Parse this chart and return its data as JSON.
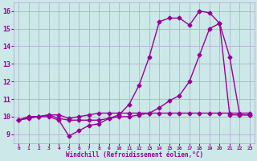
{
  "background_color": "#cce8e8",
  "grid_color": "#aaaacc",
  "line_color": "#990099",
  "xlim": [
    -0.5,
    23.5
  ],
  "ylim": [
    8.5,
    16.5
  ],
  "xlabel": "Windchill (Refroidissement éolien,°C)",
  "yticks": [
    9,
    10,
    11,
    12,
    13,
    14,
    15,
    16
  ],
  "xticks": [
    0,
    1,
    2,
    3,
    4,
    5,
    6,
    7,
    8,
    9,
    10,
    11,
    12,
    13,
    14,
    15,
    16,
    17,
    18,
    19,
    20,
    21,
    22,
    23
  ],
  "series1_x": [
    0,
    1,
    2,
    3,
    4,
    5,
    6,
    7,
    8,
    9,
    10,
    11,
    12,
    13,
    14,
    15,
    16,
    17,
    18,
    19,
    20,
    21,
    22,
    23
  ],
  "series1_y": [
    9.8,
    10.0,
    10.0,
    10.0,
    9.8,
    8.9,
    9.2,
    9.5,
    9.6,
    9.9,
    10.1,
    10.7,
    11.8,
    13.4,
    15.4,
    15.6,
    15.6,
    15.2,
    16.0,
    15.9,
    15.3,
    13.4,
    10.1,
    10.1
  ],
  "series2_x": [
    0,
    1,
    2,
    3,
    4,
    5,
    6,
    7,
    8,
    9,
    10,
    11,
    12,
    13,
    14,
    15,
    16,
    17,
    18,
    19,
    20,
    21,
    22,
    23
  ],
  "series2_y": [
    9.8,
    10.0,
    10.0,
    10.1,
    9.9,
    9.8,
    9.8,
    9.8,
    9.8,
    9.9,
    10.0,
    10.0,
    10.1,
    10.2,
    10.5,
    10.9,
    11.2,
    12.0,
    13.5,
    15.0,
    15.3,
    10.1,
    10.1,
    10.1
  ],
  "series3_x": [
    0,
    1,
    2,
    3,
    4,
    5,
    6,
    7,
    8,
    9,
    10,
    11,
    12,
    13,
    14,
    15,
    16,
    17,
    18,
    19,
    20,
    21,
    22,
    23
  ],
  "series3_y": [
    9.8,
    9.9,
    10.0,
    10.1,
    10.1,
    9.9,
    10.0,
    10.1,
    10.2,
    10.2,
    10.2,
    10.2,
    10.2,
    10.2,
    10.2,
    10.2,
    10.2,
    10.2,
    10.2,
    10.2,
    10.2,
    10.2,
    10.2,
    10.2
  ],
  "marker": "D",
  "markersize": 2.5,
  "linewidth": 1.0
}
